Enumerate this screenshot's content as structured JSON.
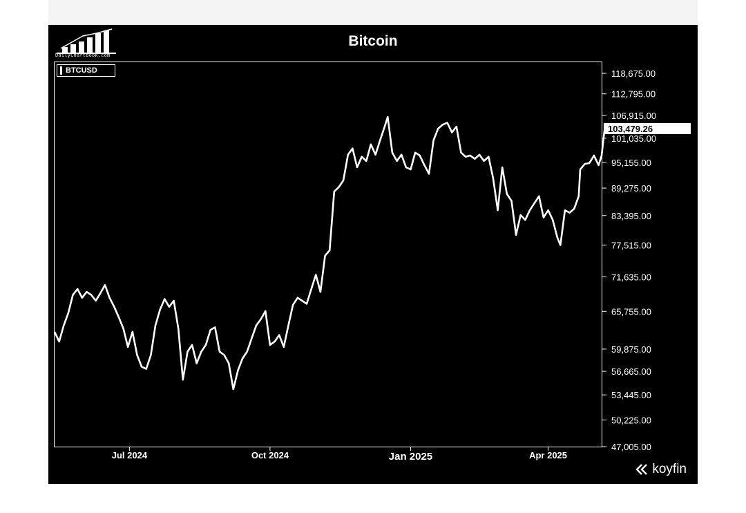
{
  "header": {
    "logo_text": "DailyChartbook.com",
    "title": "Bitcoin"
  },
  "footer": {
    "brand": "koyfin"
  },
  "colors": {
    "background": "#000000",
    "line": "#ffffff",
    "text": "#ffffff"
  },
  "chart_data": {
    "type": "line",
    "title": "Bitcoin",
    "xlabel": "",
    "ylabel": "",
    "y_axis_side": "right",
    "grid": false,
    "legend": "top-left",
    "x_range": [
      "2024-05-13",
      "2025-05-06"
    ],
    "ylim": [
      47005,
      122000
    ],
    "x_ticks": [
      {
        "date": "2024-07-01",
        "label": "Jul 2024"
      },
      {
        "date": "2024-10-01",
        "label": "Oct 2024"
      },
      {
        "date": "2025-01-01",
        "label": "Jan 2025"
      },
      {
        "date": "2025-04-01",
        "label": "Apr 2025"
      }
    ],
    "y_ticks": [
      {
        "value": 118675,
        "label": "118,675.00"
      },
      {
        "value": 112795,
        "label": "112,795.00"
      },
      {
        "value": 106915,
        "label": "106,915.00"
      },
      {
        "value": 101035,
        "label": "101,035.00"
      },
      {
        "value": 95155,
        "label": "95,155.00"
      },
      {
        "value": 89275,
        "label": "89,275.00"
      },
      {
        "value": 83395,
        "label": "83,395.00"
      },
      {
        "value": 77515,
        "label": "77,515.00"
      },
      {
        "value": 71635,
        "label": "71,635.00"
      },
      {
        "value": 65755,
        "label": "65,755.00"
      },
      {
        "value": 59875,
        "label": "59,875.00"
      },
      {
        "value": 56665,
        "label": "56,665.00"
      },
      {
        "value": 53445,
        "label": "53,445.00"
      },
      {
        "value": 50225,
        "label": "50,225.00"
      },
      {
        "value": 47005,
        "label": "47,005.00"
      }
    ],
    "last_value": {
      "value": 103479.26,
      "label": "103,479.26"
    },
    "series": [
      {
        "name": "BTCUSD",
        "points": [
          [
            "2024-05-13",
            62500
          ],
          [
            "2024-05-16",
            61000
          ],
          [
            "2024-05-19",
            63500
          ],
          [
            "2024-05-22",
            65500
          ],
          [
            "2024-05-25",
            68500
          ],
          [
            "2024-05-28",
            69500
          ],
          [
            "2024-05-31",
            68000
          ],
          [
            "2024-06-03",
            69000
          ],
          [
            "2024-06-06",
            68500
          ],
          [
            "2024-06-09",
            67500
          ],
          [
            "2024-06-12",
            68800
          ],
          [
            "2024-06-15",
            70200
          ],
          [
            "2024-06-18",
            68000
          ],
          [
            "2024-06-21",
            66500
          ],
          [
            "2024-06-24",
            64800
          ],
          [
            "2024-06-27",
            63000
          ],
          [
            "2024-06-30",
            60200
          ],
          [
            "2024-07-03",
            62500
          ],
          [
            "2024-07-06",
            59000
          ],
          [
            "2024-07-09",
            57300
          ],
          [
            "2024-07-12",
            57000
          ],
          [
            "2024-07-15",
            59000
          ],
          [
            "2024-07-18",
            63500
          ],
          [
            "2024-07-21",
            66000
          ],
          [
            "2024-07-24",
            67800
          ],
          [
            "2024-07-27",
            66500
          ],
          [
            "2024-07-30",
            67500
          ],
          [
            "2024-08-02",
            63000
          ],
          [
            "2024-08-05",
            55500
          ],
          [
            "2024-08-08",
            59500
          ],
          [
            "2024-08-11",
            60500
          ],
          [
            "2024-08-14",
            57800
          ],
          [
            "2024-08-17",
            59500
          ],
          [
            "2024-08-20",
            60500
          ],
          [
            "2024-08-23",
            62800
          ],
          [
            "2024-08-26",
            63200
          ],
          [
            "2024-08-29",
            59500
          ],
          [
            "2024-09-01",
            59000
          ],
          [
            "2024-09-04",
            57800
          ],
          [
            "2024-09-07",
            54200
          ],
          [
            "2024-09-10",
            56800
          ],
          [
            "2024-09-13",
            58500
          ],
          [
            "2024-09-16",
            59500
          ],
          [
            "2024-09-19",
            61500
          ],
          [
            "2024-09-22",
            63500
          ],
          [
            "2024-09-25",
            64500
          ],
          [
            "2024-09-28",
            65800
          ],
          [
            "2024-10-01",
            60500
          ],
          [
            "2024-10-04",
            61000
          ],
          [
            "2024-10-07",
            62000
          ],
          [
            "2024-10-10",
            60200
          ],
          [
            "2024-10-13",
            63500
          ],
          [
            "2024-10-16",
            66800
          ],
          [
            "2024-10-19",
            68000
          ],
          [
            "2024-10-22",
            67500
          ],
          [
            "2024-10-25",
            67000
          ],
          [
            "2024-10-28",
            69500
          ],
          [
            "2024-10-31",
            72000
          ],
          [
            "2024-11-03",
            69000
          ],
          [
            "2024-11-06",
            75500
          ],
          [
            "2024-11-09",
            76500
          ],
          [
            "2024-11-12",
            88500
          ],
          [
            "2024-11-15",
            89500
          ],
          [
            "2024-11-18",
            91000
          ],
          [
            "2024-11-21",
            97000
          ],
          [
            "2024-11-24",
            98500
          ],
          [
            "2024-11-27",
            94000
          ],
          [
            "2024-11-30",
            96500
          ],
          [
            "2024-12-03",
            95500
          ],
          [
            "2024-12-06",
            99500
          ],
          [
            "2024-12-09",
            97000
          ],
          [
            "2024-12-12",
            100500
          ],
          [
            "2024-12-15",
            104000
          ],
          [
            "2024-12-17",
            106500
          ],
          [
            "2024-12-20",
            97500
          ],
          [
            "2024-12-23",
            95500
          ],
          [
            "2024-12-26",
            97000
          ],
          [
            "2024-12-29",
            94000
          ],
          [
            "2025-01-01",
            93500
          ],
          [
            "2025-01-04",
            97500
          ],
          [
            "2025-01-07",
            96800
          ],
          [
            "2025-01-10",
            94500
          ],
          [
            "2025-01-13",
            92500
          ],
          [
            "2025-01-16",
            100500
          ],
          [
            "2025-01-19",
            103500
          ],
          [
            "2025-01-22",
            104500
          ],
          [
            "2025-01-25",
            105000
          ],
          [
            "2025-01-28",
            102500
          ],
          [
            "2025-01-31",
            104000
          ],
          [
            "2025-02-03",
            97500
          ],
          [
            "2025-02-06",
            96500
          ],
          [
            "2025-02-09",
            96800
          ],
          [
            "2025-02-12",
            96000
          ],
          [
            "2025-02-15",
            97000
          ],
          [
            "2025-02-18",
            95500
          ],
          [
            "2025-02-21",
            96500
          ],
          [
            "2025-02-24",
            91500
          ],
          [
            "2025-02-27",
            84500
          ],
          [
            "2025-03-02",
            94000
          ],
          [
            "2025-03-05",
            88000
          ],
          [
            "2025-03-08",
            86500
          ],
          [
            "2025-03-11",
            79500
          ],
          [
            "2025-03-14",
            83500
          ],
          [
            "2025-03-17",
            82500
          ],
          [
            "2025-03-20",
            84500
          ],
          [
            "2025-03-23",
            86000
          ],
          [
            "2025-03-26",
            87500
          ],
          [
            "2025-03-29",
            83000
          ],
          [
            "2025-04-01",
            84500
          ],
          [
            "2025-04-04",
            82500
          ],
          [
            "2025-04-07",
            79000
          ],
          [
            "2025-04-09",
            77500
          ],
          [
            "2025-04-12",
            84500
          ],
          [
            "2025-04-15",
            84000
          ],
          [
            "2025-04-18",
            84800
          ],
          [
            "2025-04-21",
            87500
          ],
          [
            "2025-04-22",
            93500
          ],
          [
            "2025-04-25",
            94800
          ],
          [
            "2025-04-28",
            95000
          ],
          [
            "2025-05-01",
            96800
          ],
          [
            "2025-05-04",
            94500
          ],
          [
            "2025-05-06",
            96800
          ],
          [
            "2025-05-08",
            103479.26
          ]
        ]
      }
    ]
  }
}
